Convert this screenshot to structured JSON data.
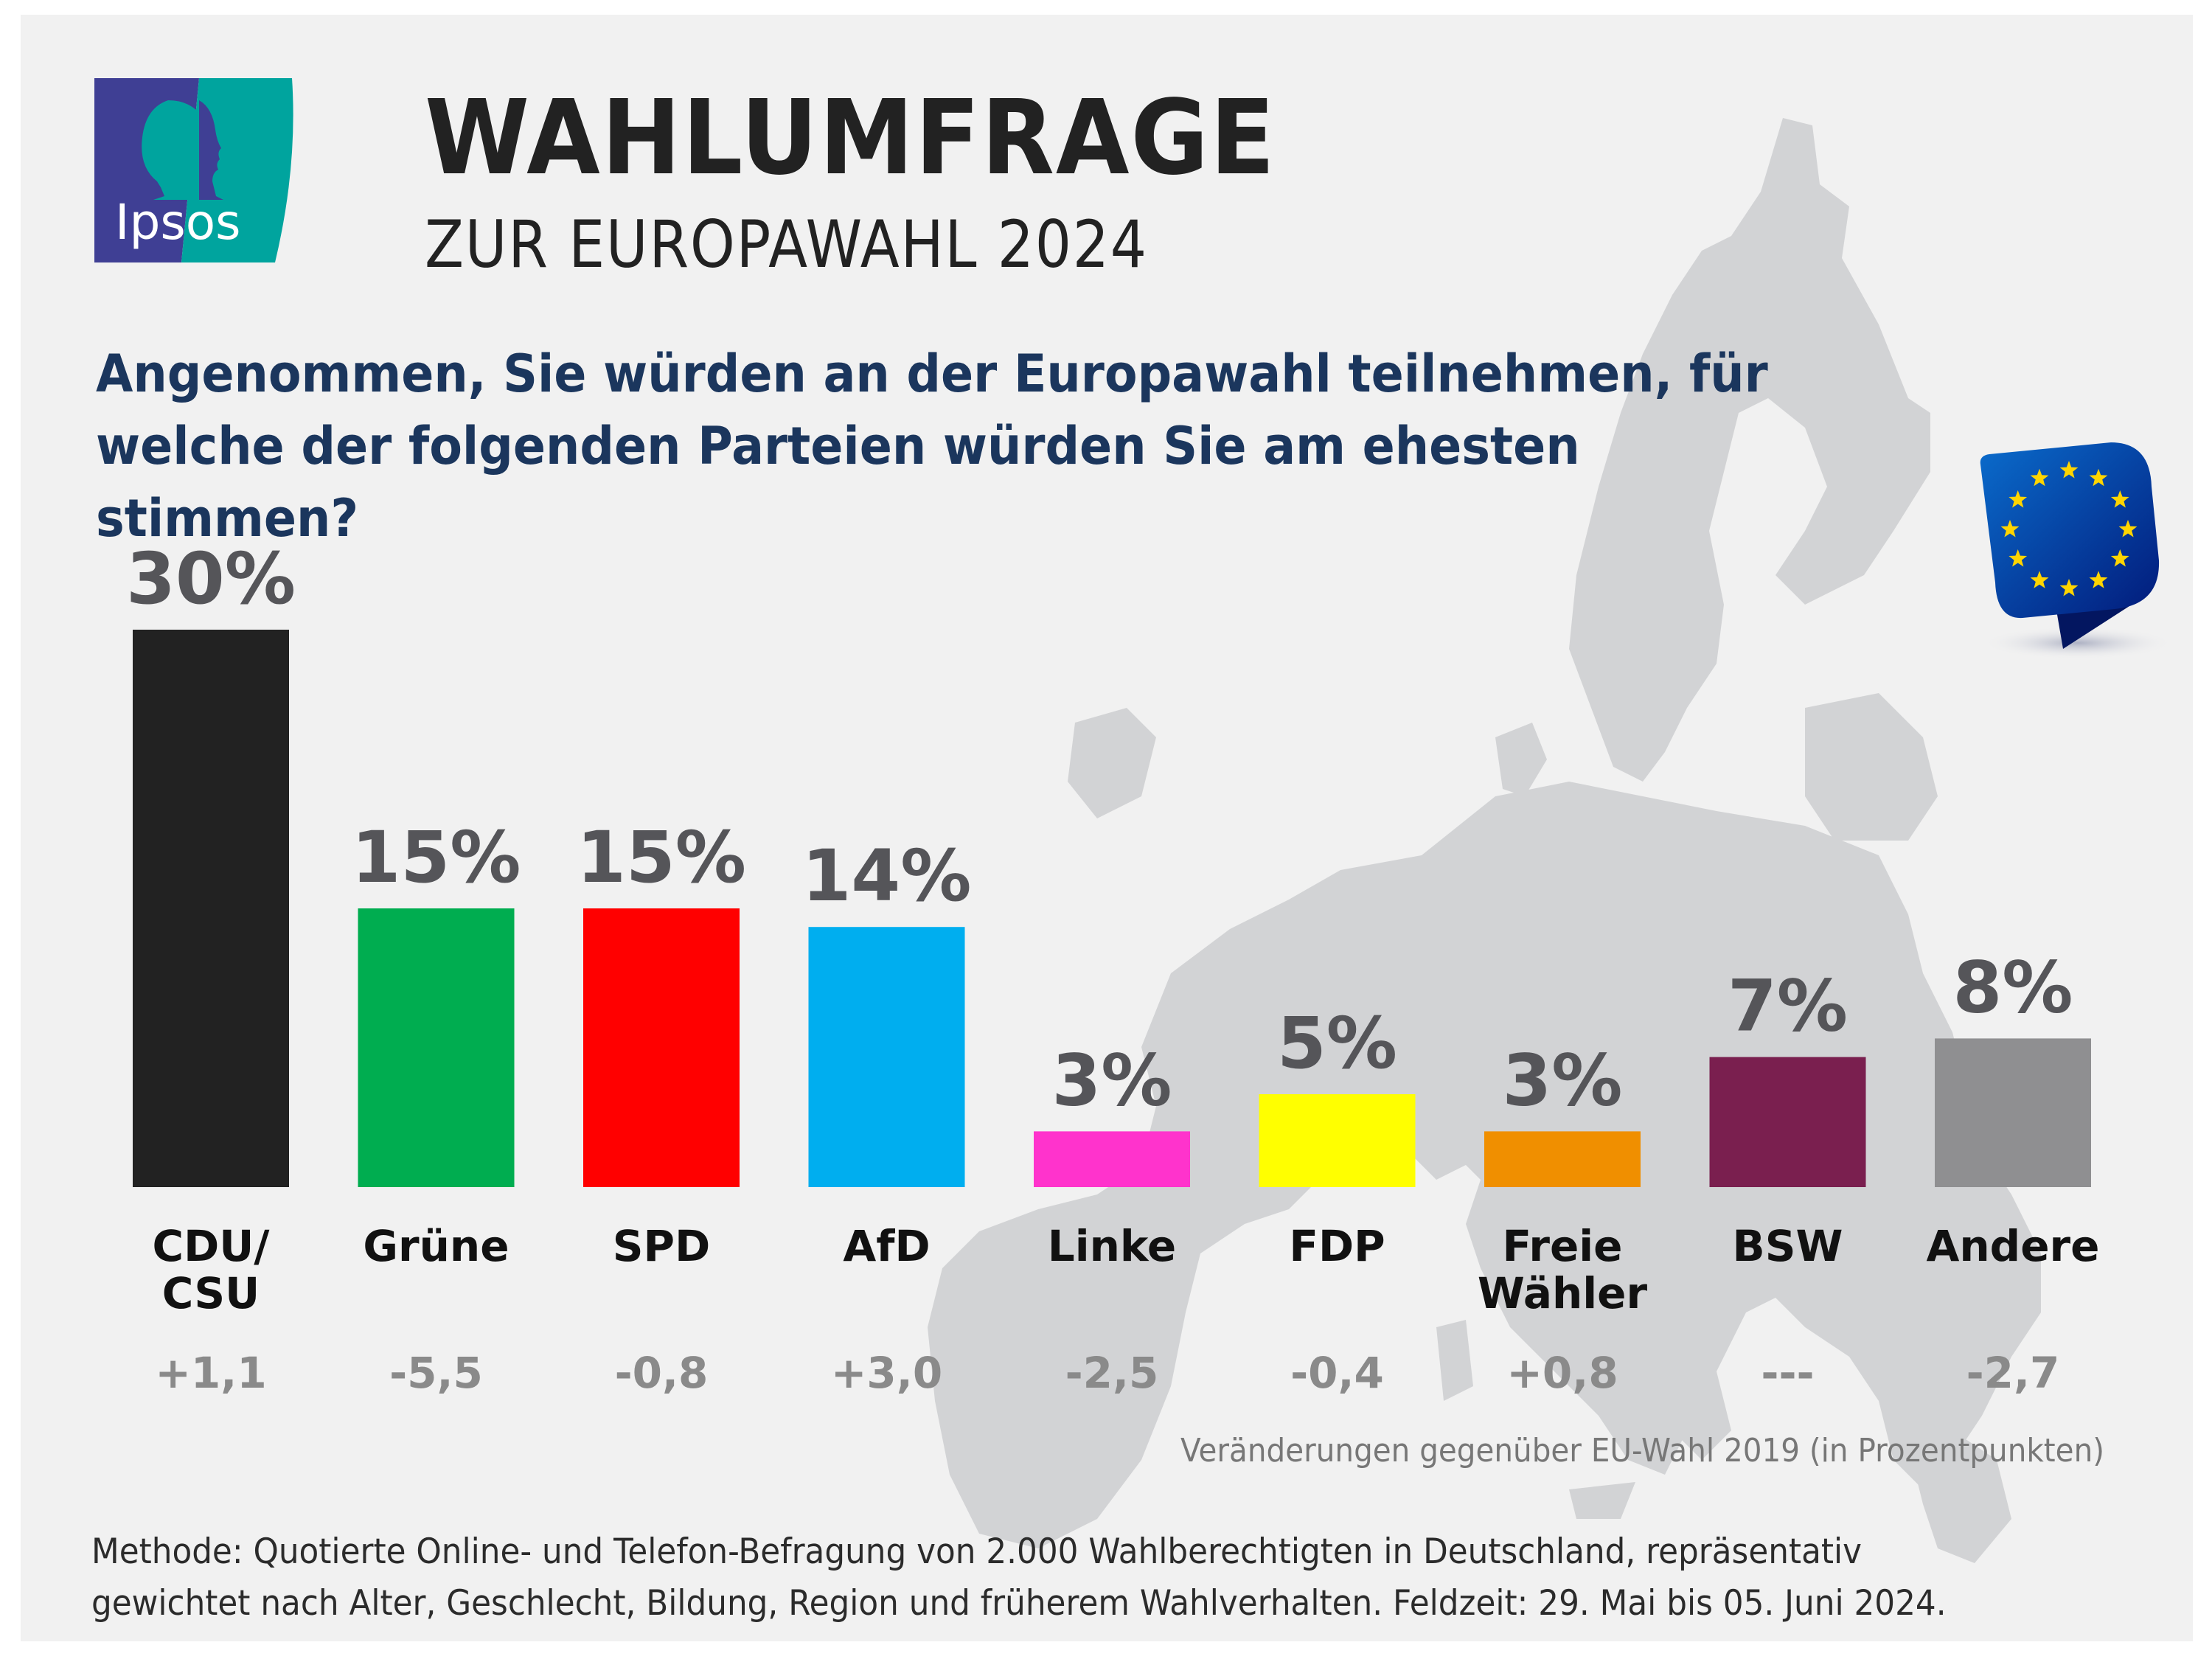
{
  "header": {
    "logo_text": "Ipsos",
    "title": "WAHLUMFRAGE",
    "subtitle": "ZUR EUROPAWAHL 2024"
  },
  "question": "Angenommen, Sie würden an der Europawahl teilnehmen, für welche der folgenden Parteien würden Sie am ehesten stimmen?",
  "colors": {
    "background": "#f1f1f1",
    "map": "#d2d3d5",
    "title": "#222222",
    "question": "#1b365d",
    "value_label": "#555559",
    "change_label": "#8a8a8a",
    "logo_purple": "#3f3f94",
    "logo_teal": "#00a49e",
    "eu_blue": "#0a3a9c",
    "eu_star": "#ffd500"
  },
  "icons": {
    "logo": "ipsos-logo",
    "badge": "eu-flag-speech-bubble-icon",
    "background": "europe-map"
  },
  "chart_data": {
    "type": "bar",
    "title": "WAHLUMFRAGE ZUR EUROPAWAHL 2024",
    "subtitle": "Angenommen, Sie würden an der Europawahl teilnehmen, für welche der folgenden Parteien würden Sie am ehesten stimmen?",
    "xlabel": "",
    "ylabel": "",
    "ylim": [
      0,
      30
    ],
    "grid": false,
    "unit": "%",
    "categories": [
      "CDU/ CSU",
      "Grüne",
      "SPD",
      "AfD",
      "Linke",
      "FDP",
      "Freie Wähler",
      "BSW",
      "Andere"
    ],
    "category_lines": [
      [
        "CDU/",
        "CSU"
      ],
      [
        "Grüne"
      ],
      [
        "SPD"
      ],
      [
        "AfD"
      ],
      [
        "Linke"
      ],
      [
        "FDP"
      ],
      [
        "Freie",
        "Wähler"
      ],
      [
        "BSW"
      ],
      [
        "Andere"
      ]
    ],
    "values": [
      30,
      15,
      15,
      14,
      3,
      5,
      3,
      7,
      8
    ],
    "value_labels": [
      "30%",
      "15%",
      "15%",
      "14%",
      "3%",
      "5%",
      "3%",
      "7%",
      "8%"
    ],
    "bar_colors": [
      "#222222",
      "#00ad50",
      "#ff0000",
      "#00aeef",
      "#ff33cc",
      "#ffff00",
      "#f08f00",
      "#7a1f4f",
      "#8f8f91"
    ],
    "changes": [
      "+1,1",
      "-5,5",
      "-0,8",
      "+3,0",
      "-2,5",
      "-0,4",
      "+0,8",
      "---",
      "-2,7"
    ],
    "changes_note": "Veränderungen gegenüber EU-Wahl 2019 (in Prozentpunkten)"
  },
  "footer": {
    "method_line1": "Methode: Quotierte Online- und Telefon-Befragung von 2.000 Wahlberechtigten in Deutschland, repräsentativ",
    "method_line2": "gewichtet nach Alter, Geschlecht, Bildung, Region und früherem Wahlverhalten. Feldzeit: 29. Mai bis 05. Juni 2024."
  }
}
